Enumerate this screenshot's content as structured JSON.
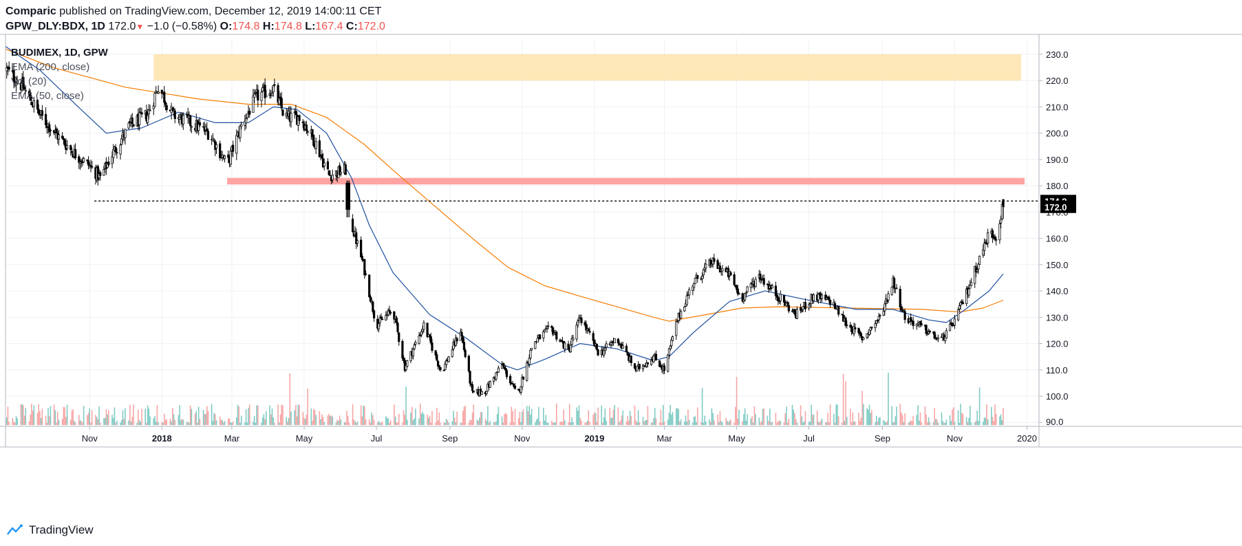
{
  "header": {
    "publisher": "Comparic",
    "published_text": "published on TradingView.com, December 12, 2019 14:00:11 CET",
    "symbol_line": "GPW_DLY:BDX, 1D",
    "last": "172.0",
    "change": "−1.0 (−0.58%)",
    "o_label": "O:",
    "o_value": "174.8",
    "h_label": "H:",
    "h_value": "174.8",
    "l_label": "L:",
    "l_value": "167.4",
    "c_label": "C:",
    "c_value": "172.0"
  },
  "legend": {
    "title": "BUDIMEX, 1D, GPW",
    "items": [
      "EMA (200, close)",
      "Vol (20)",
      "EMA (50, close)"
    ]
  },
  "branding": {
    "name": "TradingView"
  },
  "colors": {
    "up_volume": "#80cbc4",
    "down_volume": "#f7a5a5",
    "ema200": "#f57c00",
    "ema50": "#1e4fa0",
    "resistance_zone": "#ffe0a0",
    "support_zone": "#ff9e9e",
    "candle": "#000000",
    "price_tag": "#000000"
  },
  "chart_data": {
    "type": "candlestick",
    "title": "BUDIMEX, 1D, GPW",
    "x_range": [
      "2017-08-22",
      "2020-01-10"
    ],
    "y_range": [
      88,
      236
    ],
    "y_ticks": [
      "230.0",
      "220.0",
      "210.0",
      "200.0",
      "190.0",
      "180.0",
      "170.0",
      "160.0",
      "150.0",
      "140.0",
      "130.0",
      "120.0",
      "110.0",
      "100.0",
      "90.0"
    ],
    "x_ticks": [
      {
        "date": "2017-11-01",
        "label": "Nov",
        "bold": false
      },
      {
        "date": "2018-01-01",
        "label": "2018",
        "bold": true
      },
      {
        "date": "2018-03-01",
        "label": "Mar",
        "bold": false
      },
      {
        "date": "2018-05-01",
        "label": "May",
        "bold": false
      },
      {
        "date": "2018-07-01",
        "label": "Jul",
        "bold": false
      },
      {
        "date": "2018-09-01",
        "label": "Sep",
        "bold": false
      },
      {
        "date": "2018-11-01",
        "label": "Nov",
        "bold": false
      },
      {
        "date": "2019-01-01",
        "label": "2019",
        "bold": true
      },
      {
        "date": "2019-03-01",
        "label": "Mar",
        "bold": false
      },
      {
        "date": "2019-05-01",
        "label": "May",
        "bold": false
      },
      {
        "date": "2019-07-01",
        "label": "Jul",
        "bold": false
      },
      {
        "date": "2019-09-01",
        "label": "Sep",
        "bold": false
      },
      {
        "date": "2019-11-01",
        "label": "Nov",
        "bold": false
      },
      {
        "date": "2020-01-01",
        "label": "2020",
        "bold": false
      }
    ],
    "price_path": [
      [
        "2017-08-23",
        224
      ],
      [
        "2017-09-05",
        218
      ],
      [
        "2017-09-20",
        207
      ],
      [
        "2017-10-05",
        199
      ],
      [
        "2017-10-20",
        192
      ],
      [
        "2017-10-31",
        188
      ],
      [
        "2017-11-10",
        183
      ],
      [
        "2017-11-20",
        192
      ],
      [
        "2017-12-05",
        203
      ],
      [
        "2017-12-20",
        207
      ],
      [
        "2017-12-29",
        218
      ],
      [
        "2018-01-10",
        207
      ],
      [
        "2018-01-25",
        204
      ],
      [
        "2018-02-10",
        200
      ],
      [
        "2018-02-25",
        188
      ],
      [
        "2018-03-10",
        204
      ],
      [
        "2018-03-22",
        214
      ],
      [
        "2018-04-05",
        217
      ],
      [
        "2018-04-15",
        206
      ],
      [
        "2018-04-28",
        206
      ],
      [
        "2018-05-10",
        197
      ],
      [
        "2018-05-22",
        184
      ],
      [
        "2018-06-05",
        186
      ],
      [
        "2018-06-07",
        170
      ],
      [
        "2018-06-20",
        150
      ],
      [
        "2018-07-01",
        127
      ],
      [
        "2018-07-15",
        133
      ],
      [
        "2018-07-25",
        111
      ],
      [
        "2018-08-10",
        127
      ],
      [
        "2018-08-25",
        109
      ],
      [
        "2018-09-01",
        116
      ],
      [
        "2018-09-10",
        125
      ],
      [
        "2018-09-20",
        101
      ],
      [
        "2018-10-01",
        102
      ],
      [
        "2018-10-15",
        112
      ],
      [
        "2018-10-28",
        100
      ],
      [
        "2018-11-10",
        120
      ],
      [
        "2018-11-25",
        126
      ],
      [
        "2018-12-10",
        117
      ],
      [
        "2018-12-20",
        130
      ],
      [
        "2019-01-05",
        116
      ],
      [
        "2019-01-20",
        122
      ],
      [
        "2019-02-05",
        110
      ],
      [
        "2019-02-20",
        115
      ],
      [
        "2019-03-01",
        110
      ],
      [
        "2019-03-12",
        129
      ],
      [
        "2019-03-25",
        143
      ],
      [
        "2019-04-10",
        151
      ],
      [
        "2019-04-25",
        146
      ],
      [
        "2019-05-05",
        137
      ],
      [
        "2019-05-20",
        146
      ],
      [
        "2019-06-05",
        138
      ],
      [
        "2019-06-20",
        131
      ],
      [
        "2019-07-05",
        138
      ],
      [
        "2019-07-20",
        136
      ],
      [
        "2019-08-01",
        128
      ],
      [
        "2019-08-15",
        122
      ],
      [
        "2019-08-30",
        130
      ],
      [
        "2019-09-10",
        144
      ],
      [
        "2019-09-20",
        130
      ],
      [
        "2019-10-05",
        126
      ],
      [
        "2019-10-20",
        121
      ],
      [
        "2019-10-30",
        127
      ],
      [
        "2019-11-10",
        138
      ],
      [
        "2019-11-20",
        150
      ],
      [
        "2019-11-30",
        162
      ],
      [
        "2019-12-06",
        161
      ],
      [
        "2019-12-12",
        173.5
      ]
    ],
    "ema200": [
      [
        "2017-08-22",
        232
      ],
      [
        "2017-10-01",
        225
      ],
      [
        "2017-12-01",
        217.5
      ],
      [
        "2018-02-01",
        213
      ],
      [
        "2018-03-15",
        211
      ],
      [
        "2018-04-20",
        211
      ],
      [
        "2018-05-20",
        206
      ],
      [
        "2018-06-20",
        196
      ],
      [
        "2018-07-20",
        184
      ],
      [
        "2018-08-20",
        172
      ],
      [
        "2018-09-20",
        160
      ],
      [
        "2018-10-20",
        149
      ],
      [
        "2018-11-20",
        142
      ],
      [
        "2018-12-20",
        138
      ],
      [
        "2019-01-20",
        134
      ],
      [
        "2019-02-20",
        130
      ],
      [
        "2019-03-05",
        128.5
      ],
      [
        "2019-04-05",
        131
      ],
      [
        "2019-05-05",
        133.5
      ],
      [
        "2019-06-05",
        134
      ],
      [
        "2019-08-05",
        133.5
      ],
      [
        "2019-10-05",
        133
      ],
      [
        "2019-11-05",
        132
      ],
      [
        "2019-11-25",
        133.5
      ],
      [
        "2019-12-12",
        136.5
      ]
    ],
    "ema50": [
      [
        "2017-08-22",
        233
      ],
      [
        "2017-09-20",
        224
      ],
      [
        "2017-10-20",
        211
      ],
      [
        "2017-11-15",
        200
      ],
      [
        "2017-12-15",
        202
      ],
      [
        "2018-01-15",
        208
      ],
      [
        "2018-02-15",
        204
      ],
      [
        "2018-03-15",
        204
      ],
      [
        "2018-04-05",
        210
      ],
      [
        "2018-04-25",
        209
      ],
      [
        "2018-05-20",
        200
      ],
      [
        "2018-06-10",
        183
      ],
      [
        "2018-06-25",
        165
      ],
      [
        "2018-07-15",
        147
      ],
      [
        "2018-08-15",
        131
      ],
      [
        "2018-09-15",
        122
      ],
      [
        "2018-10-15",
        112
      ],
      [
        "2018-10-28",
        110
      ],
      [
        "2018-11-20",
        114
      ],
      [
        "2018-12-20",
        120
      ],
      [
        "2019-01-20",
        118
      ],
      [
        "2019-02-20",
        113.5
      ],
      [
        "2019-03-05",
        115
      ],
      [
        "2019-03-25",
        124
      ],
      [
        "2019-04-25",
        136
      ],
      [
        "2019-05-25",
        140
      ],
      [
        "2019-06-25",
        137
      ],
      [
        "2019-08-10",
        133
      ],
      [
        "2019-09-10",
        133
      ],
      [
        "2019-10-10",
        129
      ],
      [
        "2019-10-25",
        128
      ],
      [
        "2019-11-10",
        133
      ],
      [
        "2019-11-30",
        140
      ],
      [
        "2019-12-12",
        146.5
      ]
    ],
    "zones": [
      {
        "type": "resistance",
        "start": "2017-12-25",
        "end": "2019-12-27",
        "low": 220,
        "high": 230
      },
      {
        "type": "support",
        "start": "2018-02-25",
        "end": "2019-12-30",
        "low": 180.5,
        "high": 183
      }
    ],
    "reference_line": {
      "value": 174.2,
      "start": "2017-11-05",
      "end": "2020-01-10",
      "style": "dashed"
    },
    "price_tags": [
      {
        "value": "174.2",
        "price": 174.2
      },
      {
        "value": "172.0",
        "price": 172.0
      }
    ],
    "gap_note": "Jun 2018 down-gap from ~181 to ~171",
    "volume": {
      "base_price": 89,
      "max_height_price": 110
    }
  }
}
